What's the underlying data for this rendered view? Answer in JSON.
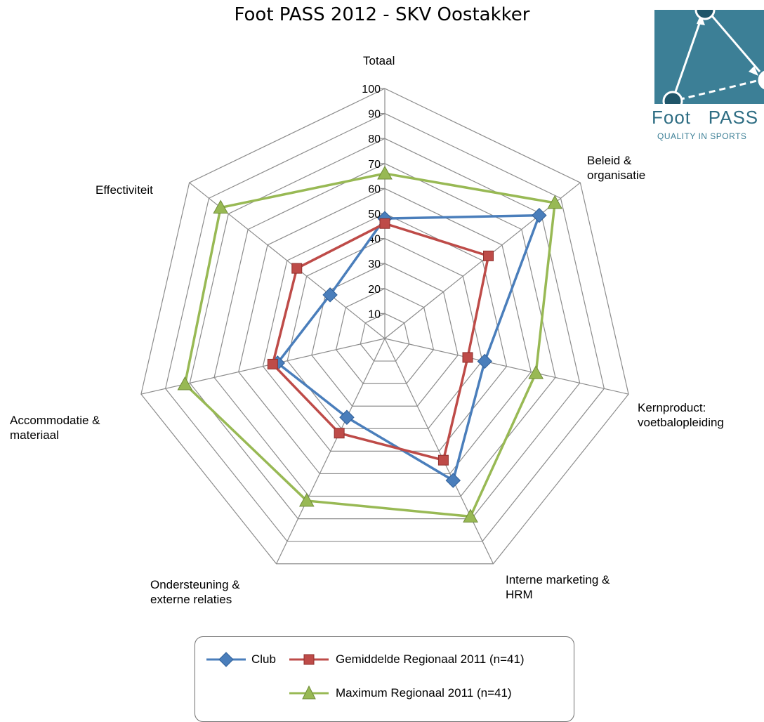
{
  "title": "Foot PASS 2012 - SKV Oostakker",
  "logo": {
    "word1": "Foot",
    "word2": "PASS",
    "tagline": "QUALITY IN SPORTS",
    "color": "#3c7f96"
  },
  "chart_data": {
    "type": "radar",
    "title": "Foot PASS 2012 - SKV Oostakker",
    "categories": [
      "Totaal",
      "Beleid &\norganisatie",
      "Kernproduct:\nvoetbalopleiding",
      "Interne marketing &\nHRM",
      "Ondersteuning &\nexterne relaties",
      "Accommodatie &\nmateriaal",
      "Effectiviteit"
    ],
    "rlim": [
      0,
      100
    ],
    "ticks": [
      "10",
      "20",
      "30",
      "40",
      "50",
      "60",
      "70",
      "80",
      "90",
      "100"
    ],
    "grid": true,
    "legend_position": "bottom",
    "series": [
      {
        "name": "Club",
        "marker": "diamond",
        "color": "#4a7ebb",
        "values": [
          48,
          79,
          41,
          63,
          35,
          44,
          28
        ]
      },
      {
        "name": "Gemiddelde Regionaal 2011 (n=41)",
        "marker": "square",
        "color": "#be4b48",
        "values": [
          46,
          53,
          34,
          54,
          42,
          46,
          45
        ]
      },
      {
        "name": "Maximum Regionaal 2011 (n=41)",
        "marker": "triangle",
        "color": "#98b954",
        "values": [
          66,
          87,
          62,
          79,
          72,
          82,
          84
        ]
      }
    ]
  }
}
